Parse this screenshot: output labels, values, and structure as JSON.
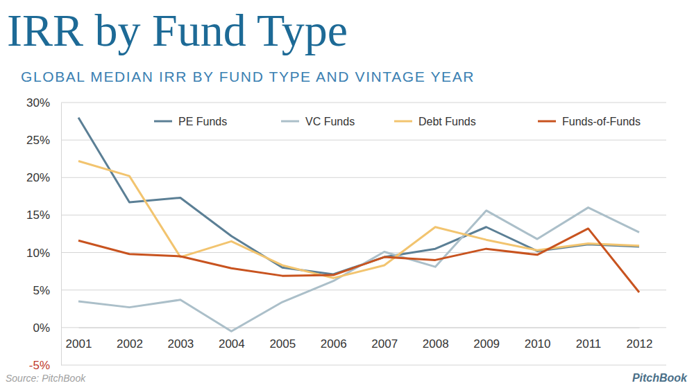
{
  "chart_data": {
    "type": "line",
    "title": "IRR by Fund Type",
    "subtitle": "GLOBAL MEDIAN IRR BY FUND TYPE AND VINTAGE YEAR",
    "annotations": [
      "Source: PitchBook",
      "PitchBook"
    ],
    "categories": [
      "2001",
      "2002",
      "2003",
      "2004",
      "2005",
      "2006",
      "2007",
      "2008",
      "2009",
      "2010",
      "2011",
      "2012"
    ],
    "series": [
      {
        "name": "PE Funds",
        "color": "#5b7f95",
        "values": [
          28.0,
          16.7,
          17.3,
          12.2,
          8.0,
          7.1,
          9.4,
          10.5,
          13.4,
          10.2,
          11.1,
          10.8
        ]
      },
      {
        "name": "VC Funds",
        "color": "#abbfc9",
        "values": [
          3.5,
          2.7,
          3.7,
          -0.5,
          3.4,
          6.2,
          10.1,
          8.1,
          15.6,
          11.8,
          16.0,
          12.7
        ]
      },
      {
        "name": "Debt Funds",
        "color": "#f2c46f",
        "values": [
          22.2,
          20.2,
          9.4,
          11.5,
          8.3,
          6.6,
          8.3,
          13.4,
          11.7,
          10.3,
          11.2,
          10.9
        ]
      },
      {
        "name": "Funds-of-Funds",
        "color": "#c8531f",
        "values": [
          11.6,
          9.8,
          9.5,
          7.9,
          6.9,
          7.0,
          9.4,
          9.0,
          10.5,
          9.7,
          13.2,
          4.7
        ]
      }
    ],
    "ylim": [
      -5,
      30
    ],
    "yticks": [
      {
        "value": -5,
        "label": "-5%"
      },
      {
        "value": 0,
        "label": "0%"
      },
      {
        "value": 5,
        "label": "5%"
      },
      {
        "value": 10,
        "label": "10%"
      },
      {
        "value": 15,
        "label": "15%"
      },
      {
        "value": 20,
        "label": "20%"
      },
      {
        "value": 25,
        "label": "25%"
      },
      {
        "value": 30,
        "label": "30%"
      }
    ],
    "grid": true,
    "legend": "top"
  }
}
